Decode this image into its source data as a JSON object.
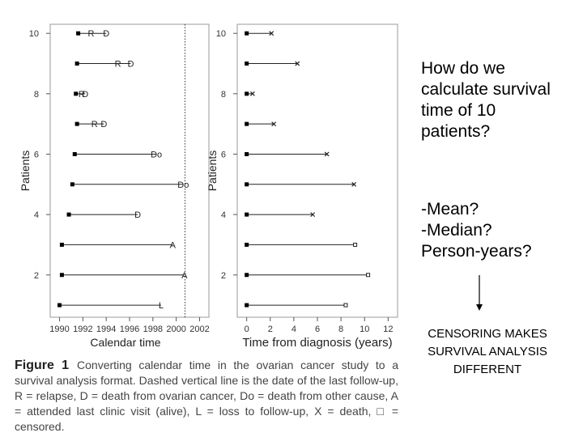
{
  "chart_data": [
    {
      "type": "timeline",
      "xlabel": "Calendar time",
      "ylabel": "Patients",
      "xlim": [
        1989.2,
        2002.8
      ],
      "xticks": [
        1990,
        1992,
        1994,
        1996,
        1998,
        2000,
        2002
      ],
      "ylim": [
        0.6,
        10.3
      ],
      "yticks": [
        2,
        4,
        6,
        8,
        10
      ],
      "y": [
        1,
        2,
        3,
        4,
        5,
        6,
        7,
        8,
        9,
        10
      ],
      "start": [
        1990.0,
        1990.2,
        1990.2,
        1990.8,
        1991.1,
        1991.3,
        1991.5,
        1991.4,
        1991.5,
        1991.6
      ],
      "end": [
        1998.7,
        2000.7,
        1999.7,
        1996.7,
        2000.6,
        1998.3,
        1993.8,
        1992.2,
        1996.1,
        1994.0
      ],
      "end_labels": [
        "L",
        "A",
        "A",
        "D",
        "Do",
        "Do",
        "D",
        "D",
        "D",
        "D"
      ],
      "relapse": [
        null,
        null,
        null,
        null,
        null,
        null,
        1993.0,
        1991.9,
        1995.0,
        1992.7
      ],
      "relapse_label": "R",
      "cutoff": 2000.75
    },
    {
      "type": "timeline",
      "xlabel": "Time from diagnosis (years)",
      "ylabel": "Patients",
      "xlim": [
        -0.8,
        12.8
      ],
      "xticks": [
        0,
        2,
        4,
        6,
        8,
        10,
        12
      ],
      "ylim": [
        0.6,
        10.3
      ],
      "yticks": [
        2,
        4,
        6,
        8,
        10
      ],
      "y": [
        1,
        2,
        3,
        4,
        5,
        6,
        7,
        8,
        9,
        10
      ],
      "start": [
        0,
        0,
        0,
        0,
        0,
        0,
        0,
        0,
        0,
        0
      ],
      "end": [
        8.4,
        10.3,
        9.2,
        5.6,
        9.1,
        6.8,
        2.3,
        0.5,
        4.3,
        2.1
      ],
      "end_markers": [
        "square",
        "square",
        "square",
        "x",
        "x",
        "x",
        "x",
        "x",
        "x",
        "x"
      ]
    }
  ],
  "figure_caption": {
    "label": "Figure 1",
    "text": "Converting calendar time in the ovarian cancer study to a survival analysis format. Dashed vertical line is the date of the last follow-up, R = relapse, D = death from ovarian cancer, Do = death from other cause, A = attended last clinic visit (alive), L = loss to follow-up, X = death, □ = censored."
  },
  "slide_text": {
    "question": "How do we calculate survival time of 10 patients?",
    "options": [
      "-Mean?",
      "-Median?",
      "Person-years?"
    ],
    "conclusion": "CENSORING MAKES SURVIVAL ANALYSIS DIFFERENT"
  }
}
